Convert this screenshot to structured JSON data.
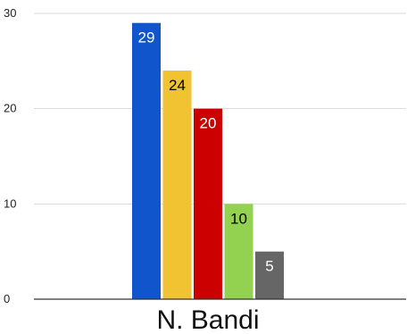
{
  "chart_data": {
    "type": "bar",
    "categories": [
      "N. Bandi"
    ],
    "series": [
      {
        "values": [
          29
        ],
        "color": "#1155cc",
        "label_color": "#ffffff"
      },
      {
        "values": [
          24
        ],
        "color": "#f1c232",
        "label_color": "#000000"
      },
      {
        "values": [
          20
        ],
        "color": "#cc0000",
        "label_color": "#ffffff"
      },
      {
        "values": [
          10
        ],
        "color": "#93d150",
        "label_color": "#000000"
      },
      {
        "values": [
          5
        ],
        "color": "#666666",
        "label_color": "#ffffff"
      }
    ],
    "title": "",
    "xlabel": "",
    "ylabel": "",
    "ylim": [
      0,
      30
    ],
    "yticks": [
      0,
      10,
      20,
      30
    ],
    "grid": true,
    "legend": "none"
  }
}
